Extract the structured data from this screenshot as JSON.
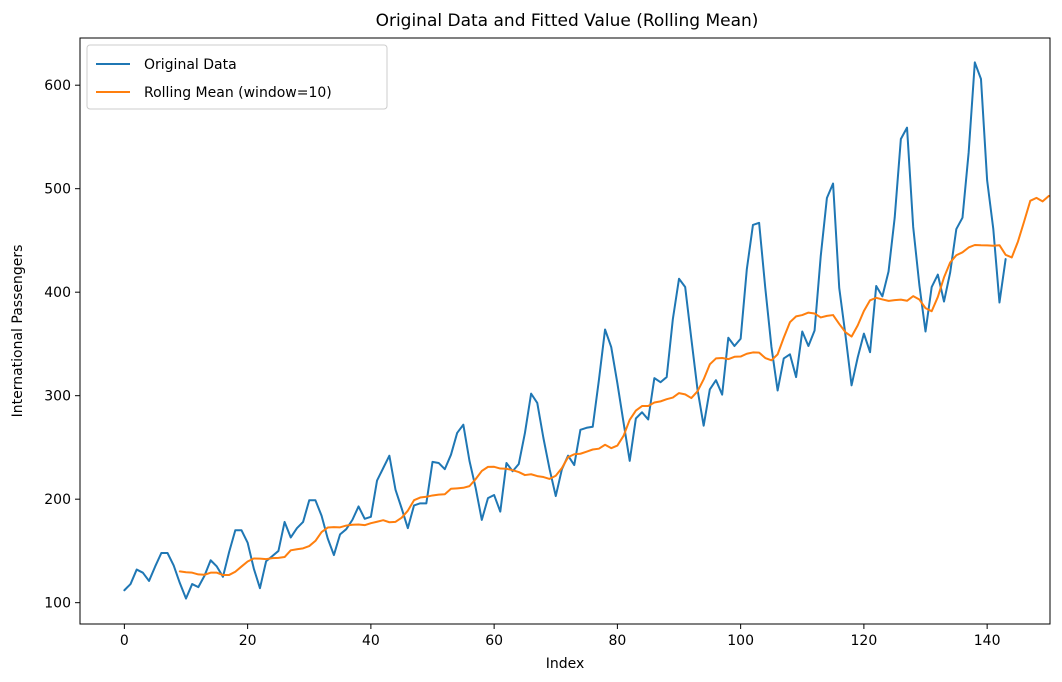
{
  "chart_data": {
    "type": "line",
    "title": "Original Data and Fitted Value (Rolling Mean)",
    "xlabel": "Index",
    "ylabel": "International Passengers",
    "xlim": [
      -7.2,
      150.2
    ],
    "ylim": [
      79.4,
      645.6
    ],
    "xticks": [
      0,
      20,
      40,
      60,
      80,
      100,
      120,
      140
    ],
    "yticks": [
      100,
      200,
      300,
      400,
      500,
      600
    ],
    "grid": false,
    "legend_position": "top-left",
    "series": [
      {
        "name": "Original Data",
        "color": "#1f77b4",
        "x_start": 0,
        "values": [
          112,
          118,
          132,
          129,
          121,
          135,
          148,
          148,
          136,
          119,
          104,
          118,
          115,
          126,
          141,
          135,
          125,
          149,
          170,
          170,
          158,
          133,
          114,
          140,
          145,
          150,
          178,
          163,
          172,
          178,
          199,
          199,
          184,
          162,
          146,
          166,
          171,
          180,
          193,
          181,
          183,
          218,
          230,
          242,
          209,
          191,
          172,
          194,
          196,
          196,
          236,
          235,
          229,
          243,
          264,
          272,
          237,
          211,
          180,
          201,
          204,
          188,
          235,
          227,
          234,
          264,
          302,
          293,
          259,
          229,
          203,
          229,
          242,
          233,
          267,
          269,
          270,
          315,
          364,
          347,
          312,
          274,
          237,
          278,
          284,
          277,
          317,
          313,
          318,
          374,
          413,
          405,
          355,
          306,
          271,
          306,
          315,
          301,
          356,
          348,
          355,
          422,
          465,
          467,
          404,
          347,
          305,
          336,
          340,
          318,
          362,
          348,
          363,
          435,
          491,
          505,
          404,
          359,
          310,
          337,
          360,
          342,
          406,
          396,
          420,
          472,
          548,
          559,
          463,
          407,
          362,
          405,
          417,
          391,
          419,
          461,
          472,
          535,
          622,
          606,
          508,
          461,
          390,
          432
        ]
      },
      {
        "name": "Rolling Mean (window=10)",
        "color": "#ff7f0e",
        "x_start": 9,
        "values": [
          130.2,
          129.4,
          129.0,
          127.3,
          127.0,
          129.0,
          129.0,
          126.7,
          126.8,
          129.9,
          134.9,
          139.8,
          142.7,
          142.6,
          142.1,
          143.0,
          143.3,
          144.1,
          150.6,
          151.6,
          152.5,
          154.7,
          159.7,
          168.2,
          172.6,
          173.0,
          172.8,
          174.5,
          175.3,
          175.5,
          174.9,
          176.8,
          178.2,
          179.7,
          177.7,
          178.1,
          182.1,
          188.9,
          199.0,
          201.6,
          202.3,
          203.6,
          204.4,
          204.8,
          210.1,
          210.5,
          211.0,
          212.6,
          219.4,
          227.3,
          231.2,
          231.3,
          229.6,
          229.4,
          228.0,
          226.2,
          223.3,
          224.1,
          222.3,
          221.4,
          219.6,
          222.6,
          230.1,
          240.6,
          243.4,
          243.9,
          245.9,
          248.0,
          248.8,
          252.6,
          249.3,
          251.8,
          261.2,
          276.7,
          285.6,
          290.0,
          290.0,
          293.4,
          294.5,
          296.6,
          298.2,
          302.5,
          301.3,
          297.7,
          304.2,
          315.8,
          330.3,
          336.0,
          336.4,
          335.3,
          337.6,
          337.8,
          340.5,
          341.8,
          341.6,
          336.4,
          334.2,
          339.9,
          356.1,
          371.0,
          376.6,
          377.9,
          380.3,
          379.4,
          375.6,
          377.1,
          377.9,
          369.3,
          361.4,
          357.1,
          367.9,
          381.8,
          392.2,
          394.6,
          393.0,
          391.6,
          392.3,
          392.8,
          391.7,
          396.2,
          392.9,
          384.6,
          381.6,
          395.4,
          414.3,
          428.7,
          435.7,
          438.5,
          443.2,
          445.6,
          445.3,
          445.2,
          444.9,
          445.4,
          436.1,
          433.6,
          448.9,
          468.3,
          488.3,
          491.1,
          487.7,
          493.0
        ]
      }
    ]
  }
}
